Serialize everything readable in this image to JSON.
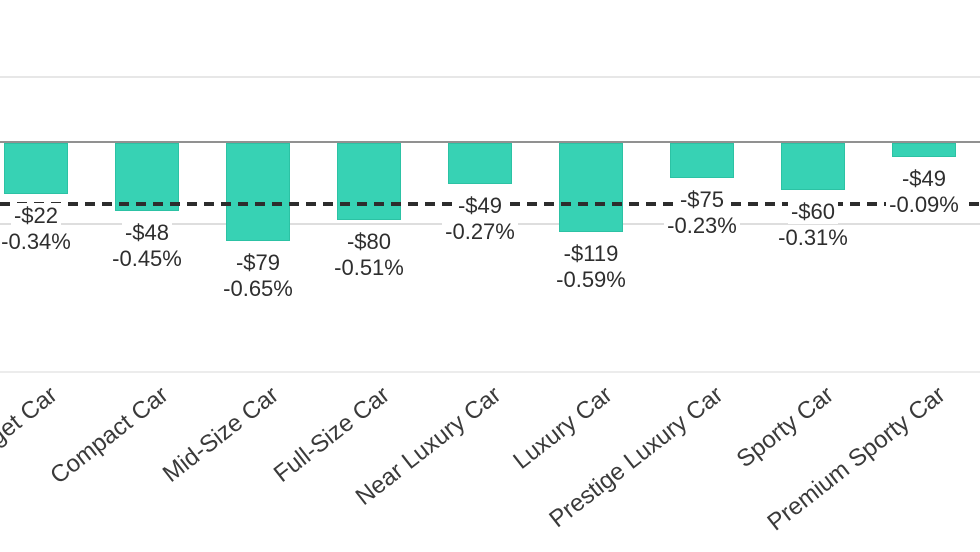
{
  "chart_data": {
    "type": "bar",
    "title": "",
    "categories": [
      "Budget Car",
      "Compact Car",
      "Mid-Size Car",
      "Full-Size Car",
      "Near Luxury Car",
      "Luxury Car",
      "Prestige Luxury Car",
      "Sporty Car",
      "Premium Sporty Car"
    ],
    "series": [
      {
        "name": "dollar-change",
        "values": [
          -22,
          -48,
          -79,
          -80,
          -49,
          -119,
          -75,
          -60,
          -49
        ],
        "labels": [
          "-$22",
          "-$48",
          "-$79",
          "-$80",
          "-$49",
          "-$119",
          "-$75",
          "-$60",
          "-$49"
        ]
      },
      {
        "name": "percent-change",
        "values": [
          -0.34,
          -0.45,
          -0.65,
          -0.51,
          -0.27,
          -0.59,
          -0.23,
          -0.31,
          -0.09
        ],
        "labels": [
          "-0.34%",
          "-0.45%",
          "-0.65%",
          "-0.51%",
          "-0.27%",
          "-0.59%",
          "-0.23%",
          "-0.31%",
          "-0.09%"
        ]
      }
    ],
    "bar_metric": "percent-change",
    "reference_lines": [
      {
        "style": "dashed",
        "color": "#2d2d2d",
        "value_pct": -0.41
      },
      {
        "style": "solid-light",
        "color": "#dedede",
        "value_pct": -0.53
      }
    ],
    "ylim_pct": [
      -1.52,
      0.44
    ],
    "grid": "horizontal-light",
    "legend": "none",
    "xlabel": "",
    "ylabel": "",
    "colors": {
      "bar_fill": "#37d2b4",
      "bar_border": "#2cc2a4",
      "axis_line": "#919191",
      "gridline": "#e7e7e7",
      "dashed_line": "#2d2d2d",
      "label_text": "#2e2e2e"
    }
  }
}
